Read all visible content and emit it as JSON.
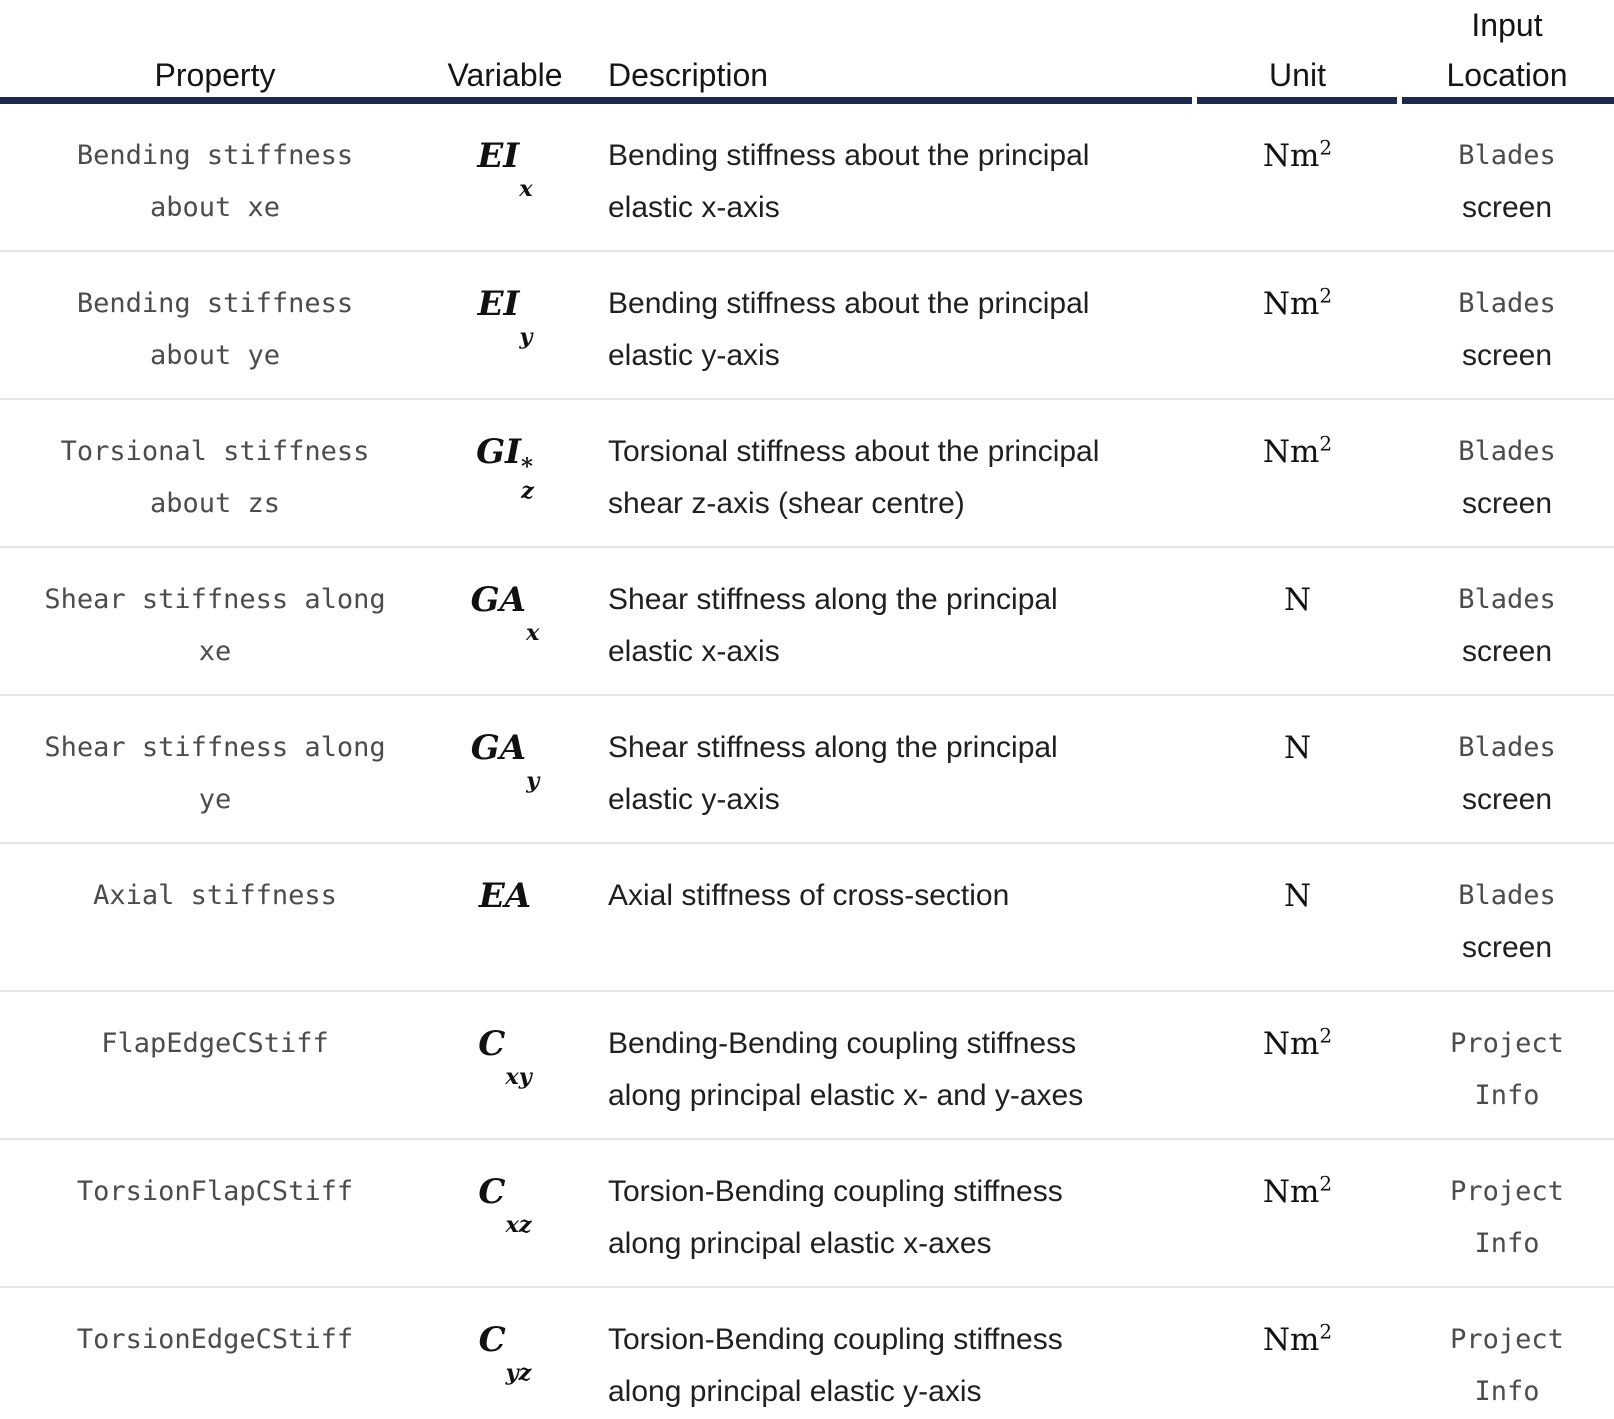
{
  "header": {
    "columns": [
      {
        "label": "Property"
      },
      {
        "label": "Variable"
      },
      {
        "label": "Description"
      },
      {
        "label": "Unit"
      },
      {
        "label": "Input\nLocation"
      }
    ]
  },
  "colors": {
    "header_rule": "#1d2a4d",
    "row_rule": "#e4e4e4",
    "code_text": "#4c4c4c",
    "body_text": "#202020"
  },
  "rows": [
    {
      "property_lines": [
        "Bending stiffness",
        "about xe"
      ],
      "variable": {
        "base": "EI",
        "sup": "",
        "sub": "x"
      },
      "description_lines": [
        "Bending stiffness about the principal",
        "elastic x-axis"
      ],
      "unit": {
        "base": "Nm",
        "sup": "2"
      },
      "location_lines": [
        {
          "text": "Blades",
          "code": true
        },
        {
          "text": "screen",
          "code": false
        }
      ]
    },
    {
      "property_lines": [
        "Bending stiffness",
        "about ye"
      ],
      "variable": {
        "base": "EI",
        "sup": "",
        "sub": "y"
      },
      "description_lines": [
        "Bending stiffness about the principal",
        "elastic y-axis"
      ],
      "unit": {
        "base": "Nm",
        "sup": "2"
      },
      "location_lines": [
        {
          "text": "Blades",
          "code": true
        },
        {
          "text": "screen",
          "code": false
        }
      ]
    },
    {
      "property_lines": [
        "Torsional stiffness",
        "about zs"
      ],
      "variable": {
        "base": "GI",
        "sup": "*",
        "sub": "z"
      },
      "description_lines": [
        "Torsional stiffness about the principal",
        "shear z-axis (shear centre)"
      ],
      "unit": {
        "base": "Nm",
        "sup": "2"
      },
      "location_lines": [
        {
          "text": "Blades",
          "code": true
        },
        {
          "text": "screen",
          "code": false
        }
      ]
    },
    {
      "property_lines": [
        "Shear stiffness along",
        "xe"
      ],
      "variable": {
        "base": "GA",
        "sup": "",
        "sub": "x"
      },
      "description_lines": [
        "Shear stiffness along the principal",
        "elastic x-axis"
      ],
      "unit": {
        "base": "N",
        "sup": ""
      },
      "location_lines": [
        {
          "text": "Blades",
          "code": true
        },
        {
          "text": "screen",
          "code": false
        }
      ]
    },
    {
      "property_lines": [
        "Shear stiffness along",
        "ye"
      ],
      "variable": {
        "base": "GA",
        "sup": "",
        "sub": "y"
      },
      "description_lines": [
        "Shear stiffness along the principal",
        "elastic y-axis"
      ],
      "unit": {
        "base": "N",
        "sup": ""
      },
      "location_lines": [
        {
          "text": "Blades",
          "code": true
        },
        {
          "text": "screen",
          "code": false
        }
      ]
    },
    {
      "property_lines": [
        "Axial stiffness"
      ],
      "variable": {
        "base": "EA",
        "sup": "",
        "sub": ""
      },
      "description_lines": [
        "Axial stiffness of cross-section"
      ],
      "unit": {
        "base": "N",
        "sup": ""
      },
      "location_lines": [
        {
          "text": "Blades",
          "code": true
        },
        {
          "text": "screen",
          "code": false
        }
      ]
    },
    {
      "property_lines": [
        "FlapEdgeCStiff"
      ],
      "variable": {
        "base": "C",
        "sup": "",
        "sub": "xy"
      },
      "description_lines": [
        "Bending-Bending coupling stiffness",
        "along principal elastic x- and y-axes"
      ],
      "unit": {
        "base": "Nm",
        "sup": "2"
      },
      "location_lines": [
        {
          "text": "Project",
          "code": true
        },
        {
          "text": "Info",
          "code": true
        }
      ]
    },
    {
      "property_lines": [
        "TorsionFlapCStiff"
      ],
      "variable": {
        "base": "C",
        "sup": "",
        "sub": "xz"
      },
      "description_lines": [
        "Torsion-Bending coupling stiffness",
        "along principal elastic x-axes"
      ],
      "unit": {
        "base": "Nm",
        "sup": "2"
      },
      "location_lines": [
        {
          "text": "Project",
          "code": true
        },
        {
          "text": "Info",
          "code": true
        }
      ]
    },
    {
      "property_lines": [
        "TorsionEdgeCStiff"
      ],
      "variable": {
        "base": "C",
        "sup": "",
        "sub": "yz"
      },
      "description_lines": [
        "Torsion-Bending coupling stiffness",
        "along principal elastic y-axis"
      ],
      "unit": {
        "base": "Nm",
        "sup": "2"
      },
      "location_lines": [
        {
          "text": "Project",
          "code": true
        },
        {
          "text": "Info",
          "code": true
        }
      ]
    }
  ]
}
